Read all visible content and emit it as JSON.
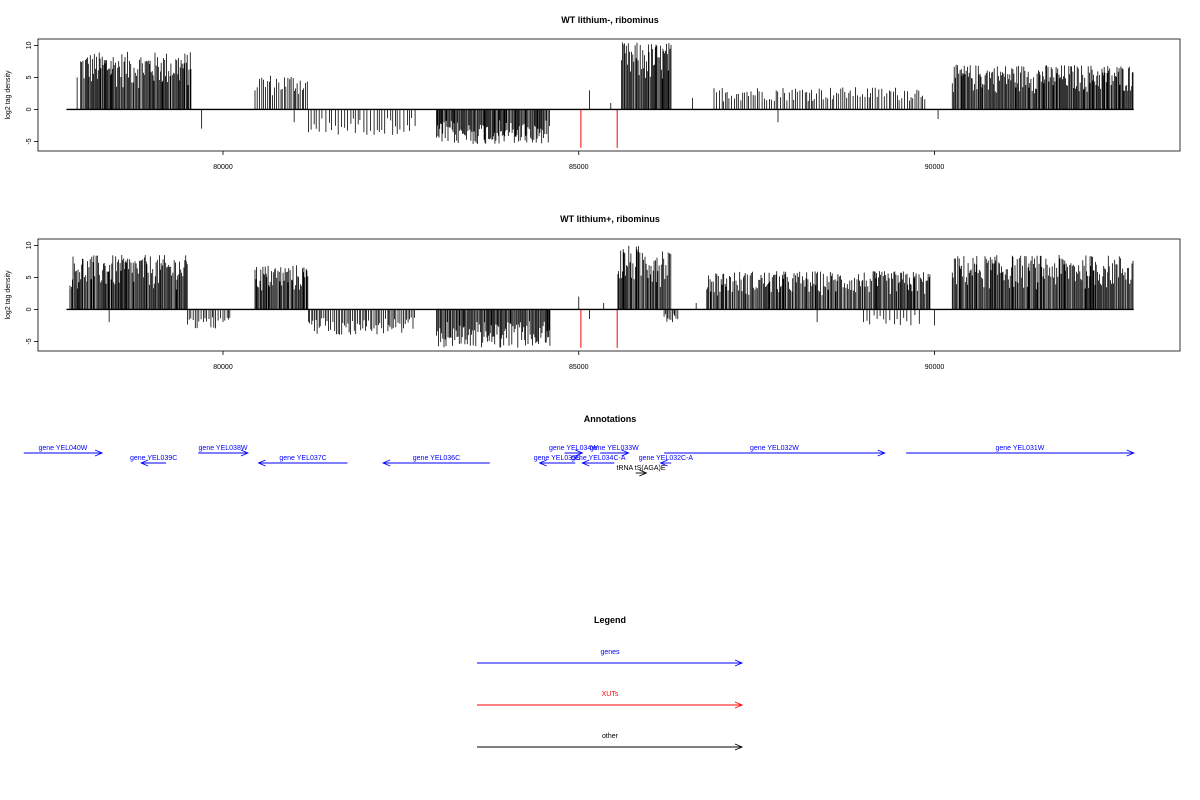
{
  "chart_data": [
    {
      "type": "bar",
      "title": "WT lithium-, ribominus",
      "ylabel": "log2 tag density",
      "xlim": [
        77400,
        93450
      ],
      "ylim": [
        -6.5,
        11
      ],
      "x_ticks": [
        80000,
        85000,
        90000
      ],
      "y_ticks": [
        -5,
        0,
        5,
        10
      ],
      "bar_color": "#000000",
      "baseline": [
        77800,
        92800
      ],
      "segments": [
        {
          "x0": 78000,
          "x1": 79550,
          "min": 0,
          "max": 9,
          "density": 1
        },
        {
          "x0": 80450,
          "x1": 81200,
          "min": 0,
          "max": 5.5,
          "density": 0.6
        },
        {
          "x0": 81200,
          "x1": 82700,
          "min": -4,
          "max": 0,
          "density": 0.35
        },
        {
          "x0": 83000,
          "x1": 84600,
          "min": -5.5,
          "max": 0,
          "density": 1
        },
        {
          "x0": 85600,
          "x1": 86300,
          "min": 0,
          "max": 10.5,
          "density": 1
        },
        {
          "x0": 86900,
          "x1": 89900,
          "min": 0,
          "max": 3.5,
          "density": 0.45
        },
        {
          "x0": 90250,
          "x1": 92800,
          "min": 0,
          "max": 7,
          "density": 1
        }
      ],
      "extra_bars": [
        {
          "x": 77950,
          "y": 5
        },
        {
          "x": 79700,
          "y": -3
        },
        {
          "x": 81000,
          "y": -2
        },
        {
          "x": 85150,
          "y": 3
        },
        {
          "x": 85450,
          "y": 1
        },
        {
          "x": 86600,
          "y": 1.8
        },
        {
          "x": 87800,
          "y": -2
        },
        {
          "x": 90050,
          "y": -1.5
        }
      ],
      "red_bars": [
        {
          "x": 85030,
          "y": -6
        },
        {
          "x": 85540,
          "y": -6
        }
      ]
    },
    {
      "type": "bar",
      "title": "WT lithium+, ribominus",
      "ylabel": "log2 tag density",
      "xlim": [
        77400,
        93450
      ],
      "ylim": [
        -6.5,
        11
      ],
      "x_ticks": [
        80000,
        85000,
        90000
      ],
      "y_ticks": [
        -5,
        0,
        5,
        10
      ],
      "bar_color": "#000000",
      "baseline": [
        77800,
        92800
      ],
      "segments": [
        {
          "x0": 77850,
          "x1": 79500,
          "min": 0,
          "max": 8.5,
          "density": 1
        },
        {
          "x0": 79500,
          "x1": 80100,
          "min": -3,
          "max": 0,
          "density": 0.5
        },
        {
          "x0": 80450,
          "x1": 81200,
          "min": 0,
          "max": 7,
          "density": 1
        },
        {
          "x0": 81200,
          "x1": 82700,
          "min": -4,
          "max": 0,
          "density": 0.6
        },
        {
          "x0": 83000,
          "x1": 84600,
          "min": -6,
          "max": 0,
          "density": 1
        },
        {
          "x0": 85550,
          "x1": 86300,
          "min": 0,
          "max": 10,
          "density": 1
        },
        {
          "x0": 86200,
          "x1": 86400,
          "min": -2,
          "max": 0,
          "density": 0.8
        },
        {
          "x0": 86800,
          "x1": 89950,
          "min": 0,
          "max": 6,
          "density": 0.9
        },
        {
          "x0": 89000,
          "x1": 89800,
          "min": -2.5,
          "max": 0,
          "density": 0.3
        },
        {
          "x0": 90250,
          "x1": 92800,
          "min": 0,
          "max": 8.5,
          "density": 1
        }
      ],
      "extra_bars": [
        {
          "x": 77850,
          "y": 3.2
        },
        {
          "x": 78400,
          "y": -2
        },
        {
          "x": 85000,
          "y": 2
        },
        {
          "x": 85150,
          "y": -1.5
        },
        {
          "x": 85350,
          "y": 1
        },
        {
          "x": 86650,
          "y": 1
        },
        {
          "x": 88350,
          "y": -2
        },
        {
          "x": 90000,
          "y": -2.5
        }
      ],
      "red_bars": [
        {
          "x": 85030,
          "y": -6
        },
        {
          "x": 85540,
          "y": -6
        }
      ]
    }
  ],
  "annotations": {
    "title": "Annotations",
    "features": [
      {
        "label": "gene YEL040W",
        "x0": 77200,
        "x1": 78300,
        "dir": "right",
        "row": 0,
        "color": "#0000ff"
      },
      {
        "label": "gene YEL039C",
        "x0": 78850,
        "x1": 79200,
        "dir": "left",
        "row": 1,
        "color": "#0000ff"
      },
      {
        "label": "gene YEL038W",
        "x0": 79650,
        "x1": 80350,
        "dir": "right",
        "row": 0,
        "color": "#0000ff"
      },
      {
        "label": "gene YEL037C",
        "x0": 80500,
        "x1": 81750,
        "dir": "left",
        "row": 1,
        "color": "#0000ff"
      },
      {
        "label": "gene YEL036C",
        "x0": 82250,
        "x1": 83750,
        "dir": "left",
        "row": 1,
        "color": "#0000ff"
      },
      {
        "label": "gene YEL035C",
        "x0": 84450,
        "x1": 84950,
        "dir": "left",
        "row": 1,
        "color": "#0000ff"
      },
      {
        "label": "gene YEL034W",
        "x0": 84800,
        "x1": 85050,
        "dir": "right",
        "row": 0,
        "color": "#0000ff"
      },
      {
        "label": "gene YEL034C-A",
        "x0": 85050,
        "x1": 85500,
        "dir": "left",
        "row": 1,
        "color": "#0000ff"
      },
      {
        "label": "gene YEL033W",
        "x0": 85300,
        "x1": 85700,
        "dir": "right",
        "row": 0,
        "color": "#0000ff"
      },
      {
        "label": "tRNA tS(AGA)E",
        "x0": 85800,
        "x1": 85950,
        "dir": "right",
        "row": 2,
        "color": "#000000"
      },
      {
        "label": "gene YEL032C-A",
        "x0": 86150,
        "x1": 86300,
        "dir": "left",
        "row": 1,
        "color": "#0000ff"
      },
      {
        "label": "gene YEL032W",
        "x0": 86200,
        "x1": 89300,
        "dir": "right",
        "row": 0,
        "color": "#0000ff"
      },
      {
        "label": "gene YEL031W",
        "x0": 89600,
        "x1": 92800,
        "dir": "right",
        "row": 0,
        "color": "#0000ff"
      }
    ]
  },
  "legend": {
    "title": "Legend",
    "items": [
      {
        "label": "genes",
        "color": "#0000ff"
      },
      {
        "label": "XUTs",
        "color": "#ff0000"
      },
      {
        "label": "other",
        "color": "#000000"
      }
    ]
  }
}
